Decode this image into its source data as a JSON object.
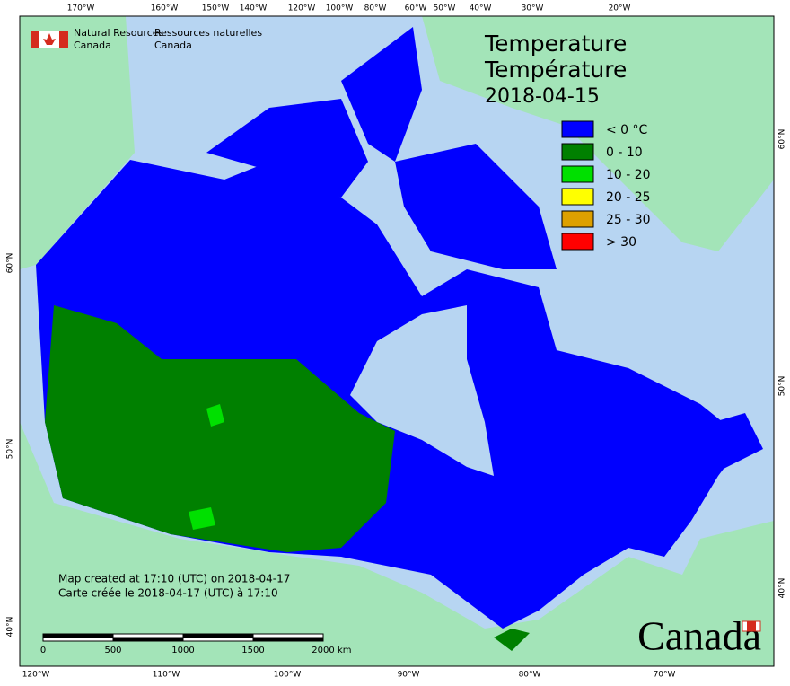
{
  "header": {
    "agency_en": [
      "Natural Resources",
      "Canada"
    ],
    "agency_fr": [
      "Ressources naturelles",
      "Canada"
    ]
  },
  "title": {
    "en": "Temperature",
    "fr": "Température",
    "date": "2018-04-15"
  },
  "legend": [
    {
      "label": "< 0 °C",
      "color": "#0000ff"
    },
    {
      "label": "0 - 10",
      "color": "#008000"
    },
    {
      "label": "10 - 20",
      "color": "#00e000"
    },
    {
      "label": "20 - 25",
      "color": "#ffff00"
    },
    {
      "label": "25 - 30",
      "color": "#dda000"
    },
    {
      "label": "> 30",
      "color": "#ff0000"
    }
  ],
  "graticule": {
    "top": [
      "170°W",
      "160°W",
      "150°W",
      "140°W",
      "120°W",
      "100°W",
      "80°W",
      "60°W",
      "50°W",
      "40°W",
      "30°W",
      "20°W"
    ],
    "bottom": [
      "120°W",
      "110°W",
      "100°W",
      "90°W",
      "80°W",
      "70°W"
    ],
    "left": [
      "60°N",
      "50°N",
      "40°N"
    ],
    "right": [
      "60°N",
      "50°N",
      "40°N"
    ]
  },
  "credits": [
    "Map created at 17:10 (UTC) on 2018-04-17",
    "Carte créée le 2018-04-17 (UTC) à 17:10"
  ],
  "scale_bar": {
    "labels": [
      "0",
      "500",
      "1000",
      "1500",
      "2000"
    ],
    "unit": "km"
  },
  "wordmark": "Canada"
}
